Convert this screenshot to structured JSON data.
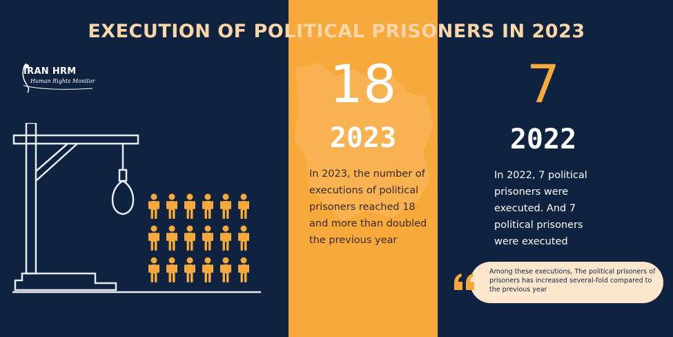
{
  "title": "EXECUTION OF POLITICAL PRISONERS IN 2023",
  "logo": {
    "name": "IRAN HRM",
    "subtitle": "Human Rights Monitor"
  },
  "stats": [
    {
      "number": "18",
      "year": "2023",
      "description": "In 2023, the number of executions of political prisoners reached 18 and more than doubled the previous year"
    },
    {
      "number": "7",
      "year": "2022",
      "description": "In 2022, 7 political prisoners were executed. And 7 political prisoners were executed"
    }
  ],
  "quote": {
    "text": "Among these executions, The political prisoners of prisoners has increased several-fold compared to the previous year"
  },
  "colors": {
    "background": "#0f2240",
    "accent": "#f7a93c",
    "title": "#f9d6a8",
    "quote_bg": "#fce7cd"
  },
  "icons": [
    "gallows-icon",
    "noose-icon",
    "person-icon",
    "quote-icon",
    "logo-icon",
    "iran-map-icon"
  ]
}
